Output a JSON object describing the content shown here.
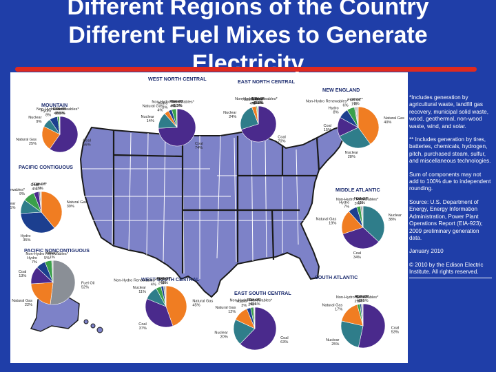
{
  "title": {
    "line1": "Different Regions of the Country",
    "line2": "Different Fuel Mixes to Generate",
    "line3": "Electricity"
  },
  "notes": {
    "non_hydro_footnote": "*Includes generation by agricultural waste, landfill gas recovery, municipal solid waste, wood, geothermal, non-wood waste, wind, and solar.",
    "other_footnote": "** Includes generation by tires, batteries, chemicals, hydrogen, pitch, purchased steam, sulfur, and miscellaneous technologies.",
    "rounding": "Sum of components may not add to 100% due to independent rounding.",
    "source": "Source: U.S. Department of Energy, Energy Information Administration, Power Plant Operations Report (EIA-923); 2009 preliminary generation data.",
    "date": "January 2010",
    "copyright": "© 2010 by the Edison Electric Institute. All rights reserved."
  },
  "colors": {
    "slide_background": "#1f3ea8",
    "title_underline": "#e02a1f",
    "coal": "#4a2a8c",
    "natural_gas": "#f07d22",
    "nuclear": "#2f7d8a",
    "hydro": "#1c3f8f",
    "fuel_oil": "#8a8f96",
    "non_hydro_renewables": "#3aa04a",
    "other": "#c8c8c8",
    "map_region": "#7d82c8",
    "state_lines": "#ffffff",
    "region_borders": "#1a1a1a"
  },
  "chart_data": [
    {
      "type": "pie",
      "title": "MOUNTAIN",
      "series": [
        {
          "name": "Coal",
          "label": "Coal",
          "value": 66,
          "display": "66%"
        },
        {
          "name": "Natural Gas",
          "label": "Natural Gas",
          "value": 25,
          "display": "25%"
        },
        {
          "name": "Nuclear",
          "label": "Nuclear",
          "value": 9,
          "display": "9%"
        },
        {
          "name": "Hydro",
          "label": "Hydro",
          "value": 8,
          "display": "8%"
        },
        {
          "name": "Non-Hydro Renewables",
          "label": "Non-Hydro Renewables*",
          "value": 2,
          "display": "2%"
        },
        {
          "name": "Fuel Oil",
          "label": "Fuel Oil",
          "value": 0.3,
          "display": "<0.5%"
        },
        {
          "name": "Other",
          "label": "Other**",
          "value": 0.3,
          "display": "<0.5%"
        }
      ]
    },
    {
      "type": "pie",
      "title": "WEST NORTH CENTRAL",
      "series": [
        {
          "name": "Coal",
          "label": "Coal",
          "value": 74,
          "display": "74%"
        },
        {
          "name": "Nuclear",
          "label": "Nuclear",
          "value": 14,
          "display": "14%"
        },
        {
          "name": "Natural Gas",
          "label": "Natural Gas",
          "value": 4,
          "display": "4%"
        },
        {
          "name": "Hydro",
          "label": "Hydro",
          "value": 3,
          "display": "3%"
        },
        {
          "name": "Non-Hydro Renewables",
          "label": "Non-Hydro Renewables*",
          "value": 4,
          "display": "4%"
        },
        {
          "name": "Fuel Oil",
          "label": "Fuel Oil",
          "value": 0.3,
          "display": "<0.5%"
        },
        {
          "name": "Other",
          "label": "Other**",
          "value": 0.3,
          "display": "<0.5%"
        }
      ]
    },
    {
      "type": "pie",
      "title": "EAST NORTH CENTRAL",
      "series": [
        {
          "name": "Coal",
          "label": "Coal",
          "value": 70,
          "display": "70%"
        },
        {
          "name": "Nuclear",
          "label": "Nuclear",
          "value": 24,
          "display": "24%"
        },
        {
          "name": "Natural Gas",
          "label": "Natural Gas",
          "value": 4,
          "display": "4%"
        },
        {
          "name": "Non-Hydro Renewables",
          "label": "Non-Hydro Renewables*",
          "value": 1,
          "display": "1%"
        },
        {
          "name": "Hydro",
          "label": "Hydro",
          "value": 0.3,
          "display": "<0.5%"
        },
        {
          "name": "Fuel Oil",
          "label": "Fuel Oil",
          "value": 0.3,
          "display": "<0.5%"
        },
        {
          "name": "Other",
          "label": "Other**",
          "value": 0.3,
          "display": "<0.5%"
        }
      ]
    },
    {
      "type": "pie",
      "title": "NEW ENGLAND",
      "series": [
        {
          "name": "Natural Gas",
          "label": "Natural Gas",
          "value": 40,
          "display": "40%"
        },
        {
          "name": "Nuclear",
          "label": "Nuclear",
          "value": 28,
          "display": "28%"
        },
        {
          "name": "Coal",
          "label": "Coal",
          "value": 15,
          "display": "15%"
        },
        {
          "name": "Hydro",
          "label": "Hydro",
          "value": 8,
          "display": "8%"
        },
        {
          "name": "Non-Hydro Renewables",
          "label": "Non-Hydro Renewables*",
          "value": 6,
          "display": "6%"
        },
        {
          "name": "Fuel Oil",
          "label": "Fuel Oil",
          "value": 1,
          "display": "1%"
        },
        {
          "name": "Other",
          "label": "Other**",
          "value": 2,
          "display": "2%"
        }
      ]
    },
    {
      "type": "pie",
      "title": "PACIFIC CONTIGUOUS",
      "series": [
        {
          "name": "Natural Gas",
          "label": "Natural Gas",
          "value": 39,
          "display": "39%"
        },
        {
          "name": "Hydro",
          "label": "Hydro",
          "value": 35,
          "display": "35%"
        },
        {
          "name": "Nuclear",
          "label": "Nuclear",
          "value": 11,
          "display": "11%"
        },
        {
          "name": "Non-Hydro Renewables",
          "label": "Non-Hydro Renewables*",
          "value": 9,
          "display": "9%"
        },
        {
          "name": "Coal",
          "label": "Coal",
          "value": 4,
          "display": "4%"
        },
        {
          "name": "Fuel Oil",
          "label": "Fuel Oil",
          "value": 1,
          "display": "1%"
        },
        {
          "name": "Other",
          "label": "Other**",
          "value": 1,
          "display": "1%"
        }
      ]
    },
    {
      "type": "pie",
      "title": "PACIFIC NONCONTIGUOUS",
      "series": [
        {
          "name": "Fuel Oil",
          "label": "Fuel Oil",
          "value": 52,
          "display": "52%"
        },
        {
          "name": "Natural Gas",
          "label": "Natural Gas",
          "value": 22,
          "display": "22%"
        },
        {
          "name": "Coal",
          "label": "Coal",
          "value": 13,
          "display": "13%"
        },
        {
          "name": "Hydro",
          "label": "Hydro",
          "value": 7,
          "display": "7%"
        },
        {
          "name": "Non-Hydro Renewables",
          "label": "Non-Hydro Renewables*",
          "value": 5,
          "display": "5%"
        },
        {
          "name": "Other",
          "label": "Other**",
          "value": 1,
          "display": "1%"
        }
      ]
    },
    {
      "type": "pie",
      "title": "MIDDLE ATLANTIC",
      "series": [
        {
          "name": "Nuclear",
          "label": "Nuclear",
          "value": 38,
          "display": "38%"
        },
        {
          "name": "Coal",
          "label": "Coal",
          "value": 34,
          "display": "34%"
        },
        {
          "name": "Natural Gas",
          "label": "Natural Gas",
          "value": 19,
          "display": "19%"
        },
        {
          "name": "Hydro",
          "label": "Hydro",
          "value": 7,
          "display": "7%"
        },
        {
          "name": "Non-Hydro Renewables",
          "label": "Non-Hydro Renewables*",
          "value": 3,
          "display": "3%"
        },
        {
          "name": "Fuel Oil",
          "label": "Fuel Oil",
          "value": 1,
          "display": "1%"
        },
        {
          "name": "Other",
          "label": "Other**",
          "value": 1,
          "display": "1%"
        }
      ]
    },
    {
      "type": "pie",
      "title": "WEST SOUTH CENTRAL",
      "series": [
        {
          "name": "Natural Gas",
          "label": "Natural Gas",
          "value": 45,
          "display": "45%"
        },
        {
          "name": "Coal",
          "label": "Coal",
          "value": 37,
          "display": "37%"
        },
        {
          "name": "Nuclear",
          "label": "Nuclear",
          "value": 11,
          "display": "11%"
        },
        {
          "name": "Non-Hydro Renewables",
          "label": "Non-Hydro Renewables*",
          "value": 4,
          "display": "4%"
        },
        {
          "name": "Hydro",
          "label": "Hydro",
          "value": 2,
          "display": "2%"
        },
        {
          "name": "Fuel Oil",
          "label": "Fuel Oil",
          "value": 1,
          "display": "1%"
        },
        {
          "name": "Other",
          "label": "Other**",
          "value": 1,
          "display": "1%"
        }
      ]
    },
    {
      "type": "pie",
      "title": "EAST SOUTH CENTRAL",
      "series": [
        {
          "name": "Coal",
          "label": "Coal",
          "value": 63,
          "display": "63%"
        },
        {
          "name": "Nuclear",
          "label": "Nuclear",
          "value": 20,
          "display": "20%"
        },
        {
          "name": "Natural Gas",
          "label": "Natural Gas",
          "value": 12,
          "display": "12%"
        },
        {
          "name": "Hydro",
          "label": "Hydro",
          "value": 3,
          "display": "3%"
        },
        {
          "name": "Non-Hydro Renewables",
          "label": "Non-Hydro Renewables*",
          "value": 2,
          "display": "2%"
        },
        {
          "name": "Fuel Oil",
          "label": "Fuel Oil",
          "value": 1,
          "display": "1%"
        },
        {
          "name": "Other",
          "label": "Other**",
          "value": 0.3,
          "display": "<0.5%"
        }
      ]
    },
    {
      "type": "pie",
      "title": "SOUTH ATLANTIC",
      "series": [
        {
          "name": "Coal",
          "label": "Coal",
          "value": 53,
          "display": "53%"
        },
        {
          "name": "Nuclear",
          "label": "Nuclear",
          "value": 25,
          "display": "25%"
        },
        {
          "name": "Natural Gas",
          "label": "Natural Gas",
          "value": 17,
          "display": "17%"
        },
        {
          "name": "Non-Hydro Renewables",
          "label": "Non-Hydro Renewables*",
          "value": 2,
          "display": "2%"
        },
        {
          "name": "Hydro",
          "label": "Hydro",
          "value": 1,
          "display": "1%"
        },
        {
          "name": "Fuel Oil",
          "label": "Fuel Oil",
          "value": 1,
          "display": "1%"
        },
        {
          "name": "Other",
          "label": "Other**",
          "value": 0.3,
          "display": "<0.5%"
        }
      ]
    }
  ]
}
